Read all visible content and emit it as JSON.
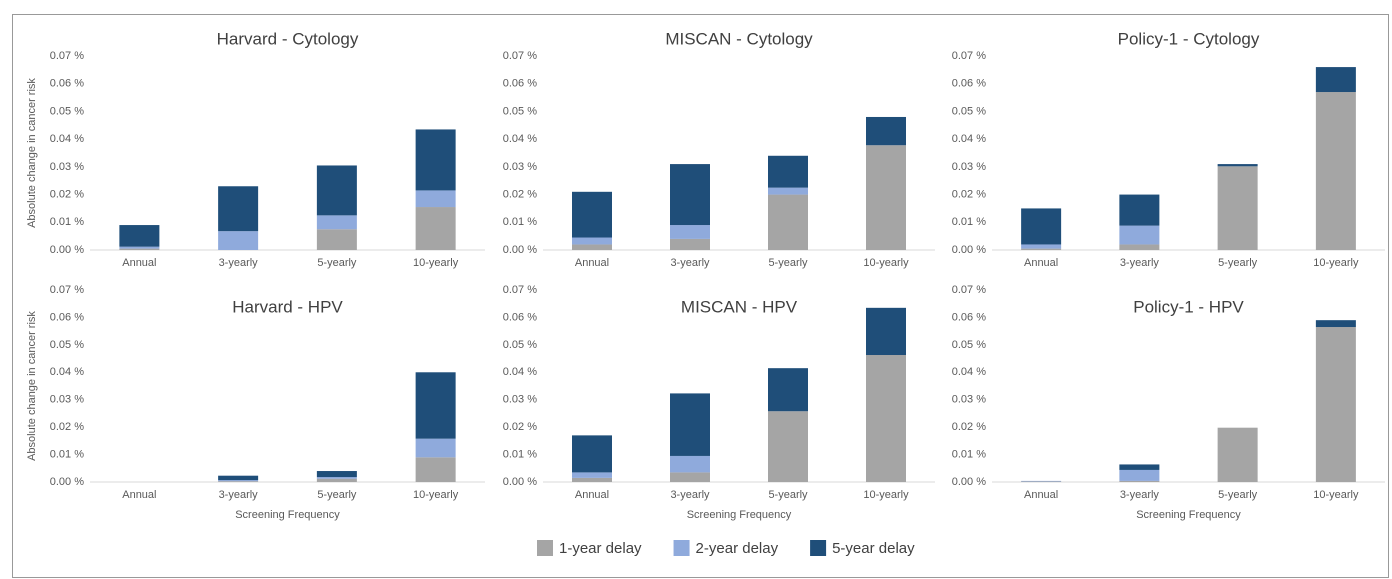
{
  "chart_data": [
    {
      "type": "bar",
      "stacked": true,
      "title": "Harvard  - Cytology",
      "ylabel": "Absolute change in cancer risk",
      "categories": [
        "Annual",
        "3-yearly",
        "5-yearly",
        "10-yearly"
      ],
      "series": [
        {
          "name": "1-year delay",
          "color": "#a5a5a5",
          "values": [
            0.0005,
            0,
            0.0075,
            0.0155
          ]
        },
        {
          "name": "2-year delay",
          "color": "#8faadc",
          "values": [
            0.0007,
            0.0068,
            0.005,
            0.006
          ]
        },
        {
          "name": "5-year delay",
          "color": "#1f4e79",
          "values": [
            0.0078,
            0.0162,
            0.018,
            0.022
          ]
        }
      ],
      "ylim": [
        0,
        0.07
      ],
      "yticks": [
        {
          "value": 0,
          "label": "0.00 %"
        },
        {
          "value": 0.01,
          "label": "0.01 %"
        },
        {
          "value": 0.02,
          "label": "0.02 %"
        },
        {
          "value": 0.03,
          "label": "0.03 %"
        },
        {
          "value": 0.04,
          "label": "0.04 %"
        },
        {
          "value": 0.05,
          "label": "0.05 %"
        },
        {
          "value": 0.06,
          "label": "0.06 %"
        },
        {
          "value": 0.07,
          "label": "0.07 %"
        }
      ]
    },
    {
      "type": "bar",
      "stacked": true,
      "title": "MISCAN - Cytology",
      "categories": [
        "Annual",
        "3-yearly",
        "5-yearly",
        "10-yearly"
      ],
      "series": [
        {
          "values": [
            0.002,
            0.004,
            0.02,
            0.0378
          ]
        },
        {
          "values": [
            0.0025,
            0.005,
            0.0025,
            0
          ]
        },
        {
          "values": [
            0.0165,
            0.022,
            0.0115,
            0.0102
          ]
        }
      ],
      "ylim": [
        0,
        0.07
      ],
      "yticks": [
        {
          "value": 0,
          "label": "0.00 %"
        },
        {
          "value": 0.01,
          "label": "0.01 %"
        },
        {
          "value": 0.02,
          "label": "0.02 %"
        },
        {
          "value": 0.03,
          "label": "0.03 %"
        },
        {
          "value": 0.04,
          "label": "0.04 %"
        },
        {
          "value": 0.05,
          "label": "0.05 %"
        },
        {
          "value": 0.06,
          "label": "0.06 %"
        },
        {
          "value": 0.07,
          "label": "0.07 %"
        }
      ]
    },
    {
      "type": "bar",
      "stacked": true,
      "title": "Policy-1 - Cytology",
      "categories": [
        "Annual",
        "3-yearly",
        "5-yearly",
        "10-yearly"
      ],
      "series": [
        {
          "values": [
            0.0005,
            0.002,
            0.0302,
            0.057
          ]
        },
        {
          "values": [
            0.0015,
            0.0068,
            0,
            0
          ]
        },
        {
          "values": [
            0.013,
            0.0112,
            0.0008,
            0.009
          ]
        }
      ],
      "ylim": [
        0,
        0.07
      ],
      "yticks": [
        {
          "value": 0,
          "label": "0.00 %"
        },
        {
          "value": 0.01,
          "label": "0.01 %"
        },
        {
          "value": 0.02,
          "label": "0.02 %"
        },
        {
          "value": 0.03,
          "label": "0.03 %"
        },
        {
          "value": 0.04,
          "label": "0.04 %"
        },
        {
          "value": 0.05,
          "label": "0.05 %"
        },
        {
          "value": 0.06,
          "label": "0.06 %"
        },
        {
          "value": 0.07,
          "label": "0.07 %"
        }
      ]
    },
    {
      "type": "bar",
      "stacked": true,
      "title": "Harvard  - HPV",
      "ylabel": "Absolute change in cancer risk",
      "xlabel": "Screening Frequency",
      "categories": [
        "Annual",
        "3-yearly",
        "5-yearly",
        "10-yearly"
      ],
      "series": [
        {
          "values": [
            0,
            0.0003,
            0.0012,
            0.009
          ]
        },
        {
          "values": [
            0,
            0.0004,
            0.0006,
            0.0068
          ]
        },
        {
          "values": [
            0,
            0.0016,
            0.0022,
            0.0242
          ]
        }
      ],
      "ylim": [
        0,
        0.07
      ],
      "yticks": [
        {
          "value": 0,
          "label": "0.00 %"
        },
        {
          "value": 0.01,
          "label": "0.01 %"
        },
        {
          "value": 0.02,
          "label": "0.02 %"
        },
        {
          "value": 0.03,
          "label": "0.03 %"
        },
        {
          "value": 0.04,
          "label": "0.04 %"
        },
        {
          "value": 0.05,
          "label": "0.05 %"
        },
        {
          "value": 0.06,
          "label": "0.06 %"
        },
        {
          "value": 0.07,
          "label": "0.07 %"
        }
      ]
    },
    {
      "type": "bar",
      "stacked": true,
      "title": "MISCAN - HPV",
      "xlabel": "Screening Frequency",
      "categories": [
        "Annual",
        "3-yearly",
        "5-yearly",
        "10-yearly"
      ],
      "series": [
        {
          "values": [
            0.0015,
            0.0035,
            0.0258,
            0.0463
          ]
        },
        {
          "values": [
            0.002,
            0.006,
            0,
            0
          ]
        },
        {
          "values": [
            0.0135,
            0.0228,
            0.0157,
            0.0172
          ]
        }
      ],
      "ylim": [
        0,
        0.07
      ],
      "yticks": [
        {
          "value": 0,
          "label": "0.00 %"
        },
        {
          "value": 0.01,
          "label": "0.01 %"
        },
        {
          "value": 0.02,
          "label": "0.02 %"
        },
        {
          "value": 0.03,
          "label": "0.03 %"
        },
        {
          "value": 0.04,
          "label": "0.04 %"
        },
        {
          "value": 0.05,
          "label": "0.05 %"
        },
        {
          "value": 0.06,
          "label": "0.06 %"
        },
        {
          "value": 0.07,
          "label": "0.07 %"
        }
      ]
    },
    {
      "type": "bar",
      "stacked": true,
      "title": "Policy-1 - HPV",
      "xlabel": "Screening Frequency",
      "categories": [
        "Annual",
        "3-yearly",
        "5-yearly",
        "10-yearly"
      ],
      "series": [
        {
          "values": [
            0.0002,
            0.0004,
            0.0198,
            0.0565
          ]
        },
        {
          "values": [
            0.0002,
            0.004,
            0,
            0
          ]
        },
        {
          "values": [
            0,
            0.002,
            0,
            0.0025
          ]
        }
      ],
      "ylim": [
        0,
        0.07
      ],
      "yticks": [
        {
          "value": 0,
          "label": "0.00 %"
        },
        {
          "value": 0.01,
          "label": "0.01 %"
        },
        {
          "value": 0.02,
          "label": "0.02 %"
        },
        {
          "value": 0.03,
          "label": "0.03 %"
        },
        {
          "value": 0.04,
          "label": "0.04 %"
        },
        {
          "value": 0.05,
          "label": "0.05 %"
        },
        {
          "value": 0.06,
          "label": "0.06 %"
        },
        {
          "value": 0.07,
          "label": "0.07 %"
        }
      ]
    }
  ]
}
